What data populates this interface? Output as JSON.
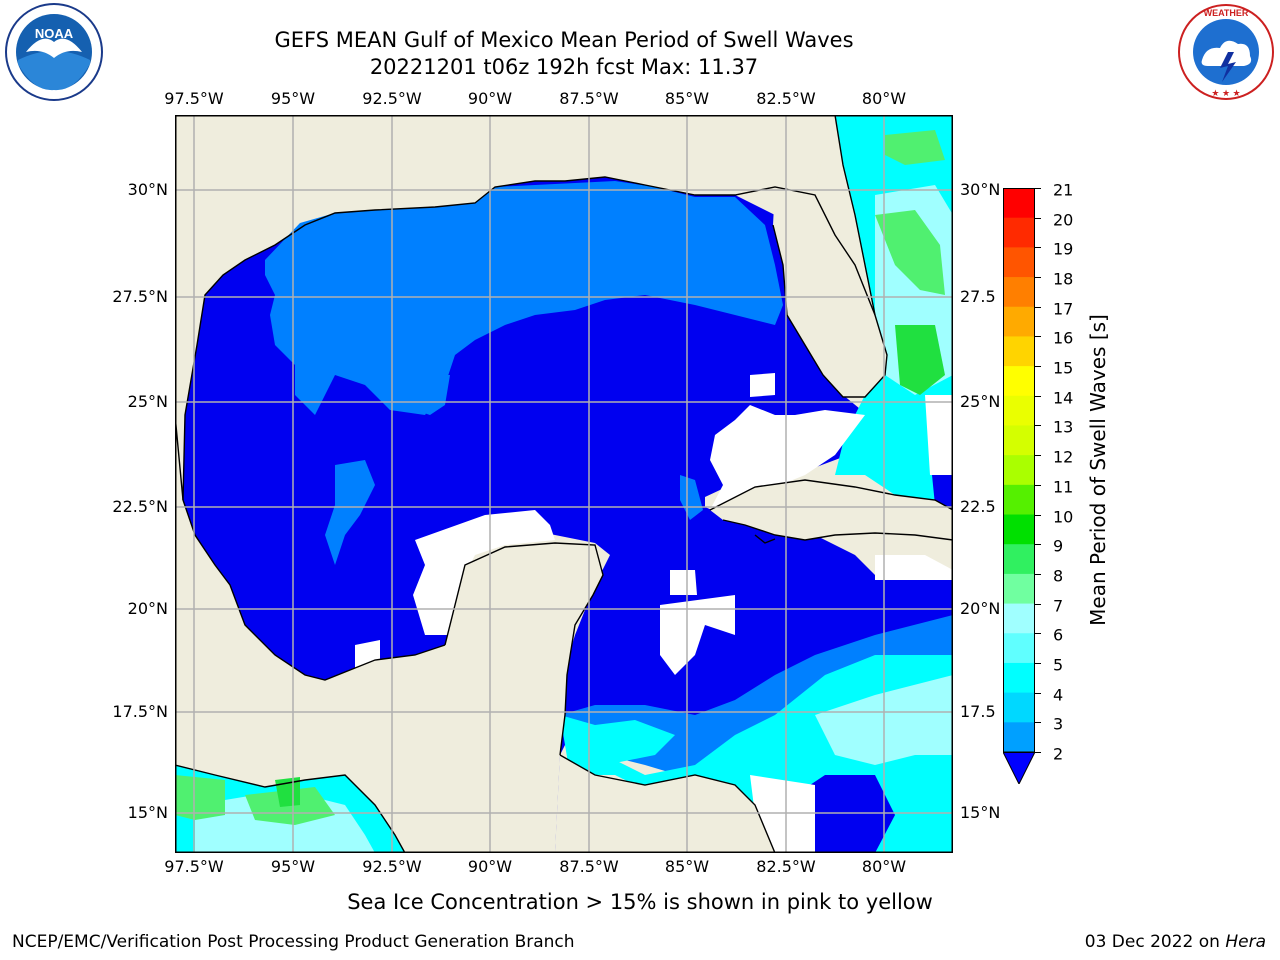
{
  "header": {
    "title_line1": "GEFS MEAN Gulf of Mexico Mean Period of Swell Waves",
    "title_line2": "20221201 t06z 192h fcst   Max: 11.37"
  },
  "map": {
    "region": "Gulf of Mexico",
    "lon_labels": [
      "97.5°W",
      "95°W",
      "92.5°W",
      "90°W",
      "87.5°W",
      "85°W",
      "82.5°W",
      "80°W"
    ],
    "lat_labels_left": [
      "30°N",
      "27.5°N",
      "25°N",
      "22.5°N",
      "20°N",
      "17.5°N",
      "15°N"
    ],
    "lat_labels_right": [
      "30°N",
      "27.5",
      "25°N",
      "22.5",
      "20°N",
      "17.5",
      "15°N"
    ],
    "colors": {
      "land": "#EFEDDD",
      "no_data": "#FFFFFF",
      "ocean_deep": "#0000F0",
      "ocean_mid": "#0080FF",
      "ocean_cyan": "#00FFFF",
      "ocean_light": "#A0FFFF",
      "ocean_green": "#50F070",
      "grid": "#B0B0B0",
      "coast": "#000000"
    }
  },
  "colorbar": {
    "label": "Mean Period of Swell Waves [s]",
    "ticks": [
      "21",
      "20",
      "19",
      "18",
      "17",
      "16",
      "15",
      "14",
      "13",
      "12",
      "11",
      "10",
      "9",
      "8",
      "7",
      "6",
      "5",
      "4",
      "3",
      "2"
    ],
    "colors": [
      "#FF0000",
      "#FF2A00",
      "#FF5500",
      "#FF7F00",
      "#FFAA00",
      "#FFD400",
      "#FFFF00",
      "#EAFF00",
      "#D4FF00",
      "#AAFF00",
      "#55F000",
      "#00E000",
      "#30F060",
      "#70FFA0",
      "#A0FFFF",
      "#60FFFF",
      "#00FFFF",
      "#00D8FF",
      "#00A0FF",
      "#0060FF"
    ],
    "under_color": "#0000FF"
  },
  "notes": {
    "ice": "Sea Ice Concentration > 15% is shown in pink to yellow"
  },
  "footer": {
    "left": "NCEP/EMC/Verification Post Processing Product Generation Branch",
    "date": "03 Dec 2022 on ",
    "machine": "Hera"
  },
  "logos": {
    "noaa_text": "NOAA",
    "nws_text": "NATIONAL WEATHER SERVICE"
  }
}
